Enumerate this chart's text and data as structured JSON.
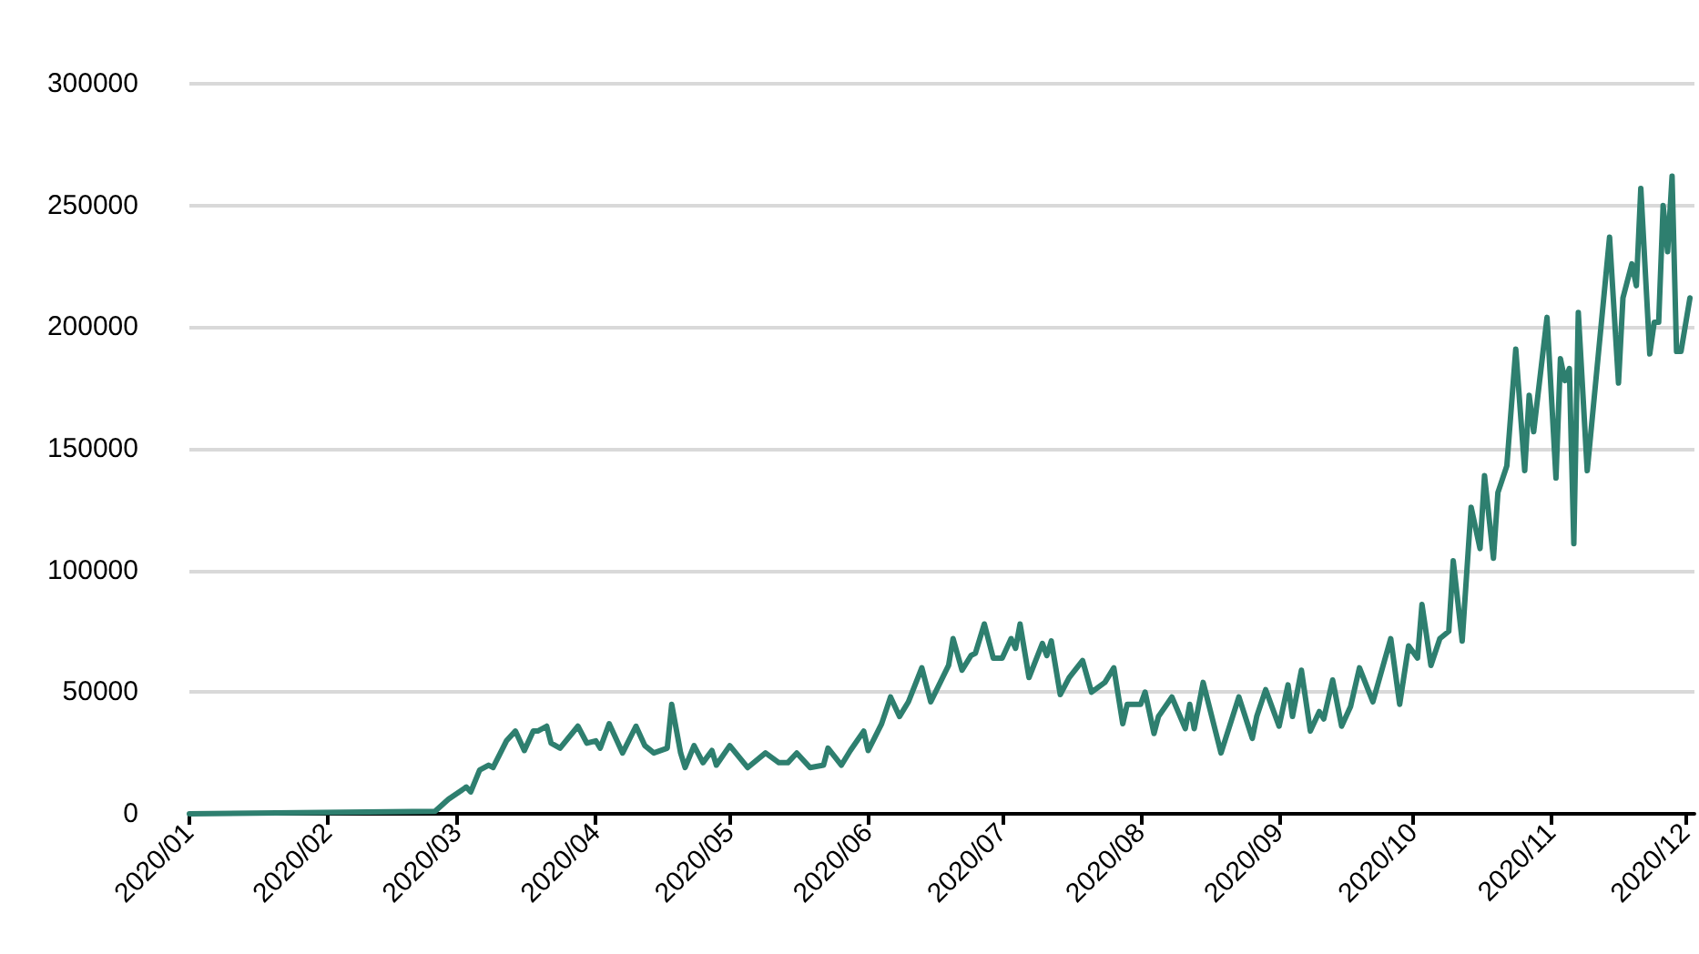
{
  "chart_data": {
    "type": "line",
    "x": [
      "2020-01-01",
      "2020-02-25",
      "2020-02-28",
      "2020-03-03",
      "2020-03-04",
      "2020-03-06",
      "2020-03-08",
      "2020-03-09",
      "2020-03-12",
      "2020-03-14",
      "2020-03-16",
      "2020-03-18",
      "2020-03-19",
      "2020-03-21",
      "2020-03-22",
      "2020-03-24",
      "2020-03-28",
      "2020-03-30",
      "2020-04-01",
      "2020-04-02",
      "2020-04-04",
      "2020-04-07",
      "2020-04-10",
      "2020-04-12",
      "2020-04-14",
      "2020-04-17",
      "2020-04-18",
      "2020-04-20",
      "2020-04-21",
      "2020-04-23",
      "2020-04-25",
      "2020-04-27",
      "2020-04-28",
      "2020-05-01",
      "2020-05-05",
      "2020-05-09",
      "2020-05-12",
      "2020-05-14",
      "2020-05-16",
      "2020-05-19",
      "2020-05-22",
      "2020-05-23",
      "2020-05-26",
      "2020-05-28",
      "2020-05-31",
      "2020-06-01",
      "2020-06-04",
      "2020-06-06",
      "2020-06-08",
      "2020-06-10",
      "2020-06-13",
      "2020-06-15",
      "2020-06-19",
      "2020-06-20",
      "2020-06-22",
      "2020-06-24",
      "2020-06-25",
      "2020-06-27",
      "2020-06-29",
      "2020-07-01",
      "2020-07-03",
      "2020-07-04",
      "2020-07-05",
      "2020-07-07",
      "2020-07-10",
      "2020-07-11",
      "2020-07-12",
      "2020-07-14",
      "2020-07-16",
      "2020-07-19",
      "2020-07-21",
      "2020-07-24",
      "2020-07-26",
      "2020-07-28",
      "2020-07-29",
      "2020-08-01",
      "2020-08-02",
      "2020-08-04",
      "2020-08-05",
      "2020-08-08",
      "2020-08-11",
      "2020-08-12",
      "2020-08-13",
      "2020-08-15",
      "2020-08-19",
      "2020-08-23",
      "2020-08-26",
      "2020-08-27",
      "2020-08-29",
      "2020-09-01",
      "2020-09-03",
      "2020-09-04",
      "2020-09-06",
      "2020-09-08",
      "2020-09-10",
      "2020-09-11",
      "2020-09-13",
      "2020-09-15",
      "2020-09-17",
      "2020-09-19",
      "2020-09-22",
      "2020-09-26",
      "2020-09-28",
      "2020-09-30",
      "2020-10-02",
      "2020-10-03",
      "2020-10-05",
      "2020-10-07",
      "2020-10-09",
      "2020-10-10",
      "2020-10-12",
      "2020-10-14",
      "2020-10-16",
      "2020-10-17",
      "2020-10-19",
      "2020-10-20",
      "2020-10-22",
      "2020-10-24",
      "2020-10-26",
      "2020-10-27",
      "2020-10-28",
      "2020-10-31",
      "2020-11-02",
      "2020-11-03",
      "2020-11-04",
      "2020-11-05",
      "2020-11-06",
      "2020-11-07",
      "2020-11-09",
      "2020-11-14",
      "2020-11-16",
      "2020-11-17",
      "2020-11-19",
      "2020-11-20",
      "2020-11-21",
      "2020-11-23",
      "2020-11-24",
      "2020-11-25",
      "2020-11-26",
      "2020-11-27",
      "2020-11-28",
      "2020-11-29",
      "2020-11-30",
      "2020-12-02"
    ],
    "series": [
      {
        "color": "#2e7f6f",
        "values": [
          0,
          1000,
          6000,
          11000,
          9000,
          18000,
          20000,
          19000,
          30000,
          34000,
          26000,
          34000,
          34000,
          36000,
          29000,
          27000,
          36000,
          29000,
          30000,
          27000,
          37000,
          25000,
          36000,
          28000,
          25000,
          27000,
          45000,
          25000,
          19000,
          28000,
          21000,
          26000,
          20000,
          28000,
          19000,
          25000,
          21000,
          21000,
          25000,
          19000,
          20000,
          27000,
          20000,
          26000,
          34000,
          26000,
          37000,
          48000,
          40000,
          46000,
          60000,
          46000,
          61000,
          72000,
          59000,
          65000,
          66000,
          78000,
          64000,
          64000,
          72000,
          68000,
          78000,
          56000,
          70000,
          65000,
          71000,
          49000,
          56000,
          63000,
          50000,
          54000,
          60000,
          37000,
          45000,
          45000,
          50000,
          33000,
          40000,
          48000,
          35000,
          45000,
          35000,
          54000,
          25000,
          48000,
          31000,
          40000,
          51000,
          36000,
          53000,
          40000,
          59000,
          34000,
          42000,
          39000,
          55000,
          36000,
          44000,
          60000,
          46000,
          72000,
          45000,
          69000,
          64000,
          86000,
          61000,
          72000,
          75000,
          104000,
          71000,
          126000,
          109000,
          139000,
          105000,
          132000,
          143000,
          191000,
          141000,
          172000,
          157000,
          204000,
          138000,
          187000,
          178000,
          183000,
          111000,
          206000,
          141000,
          237000,
          177000,
          212000,
          226000,
          217000,
          257000,
          189000,
          202000,
          202000,
          250000,
          231000,
          262000,
          190000,
          190000,
          212000
        ]
      }
    ],
    "xlim": [
      "2020-01-01",
      "2020-12-03"
    ],
    "xticks": [
      {
        "value": "2020-01-01",
        "label": "2020/01"
      },
      {
        "value": "2020-02-01",
        "label": "2020/02"
      },
      {
        "value": "2020-03-01",
        "label": "2020/03"
      },
      {
        "value": "2020-04-01",
        "label": "2020/04"
      },
      {
        "value": "2020-05-01",
        "label": "2020/05"
      },
      {
        "value": "2020-06-01",
        "label": "2020/06"
      },
      {
        "value": "2020-07-01",
        "label": "2020/07"
      },
      {
        "value": "2020-08-01",
        "label": "2020/08"
      },
      {
        "value": "2020-09-01",
        "label": "2020/09"
      },
      {
        "value": "2020-10-01",
        "label": "2020/10"
      },
      {
        "value": "2020-11-01",
        "label": "2020/11"
      },
      {
        "value": "2020-12-01",
        "label": "2020/12"
      }
    ],
    "ylim": [
      0,
      300000
    ],
    "yticks": [
      0,
      50000,
      100000,
      150000,
      200000,
      250000,
      300000
    ],
    "grid": "y",
    "marker": "none",
    "line_style": "solid"
  }
}
